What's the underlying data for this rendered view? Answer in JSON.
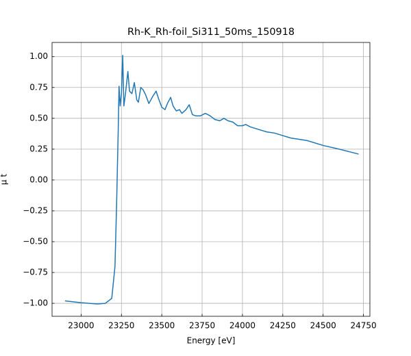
{
  "chart_data": {
    "type": "line",
    "title": "Rh-K_Rh-foil_Si311_50ms_150918",
    "xlabel": "Energy [eV]",
    "ylabel": "μ t",
    "color": "#1f77b4",
    "grid": true,
    "xlim": [
      22820,
      24790
    ],
    "ylim": [
      -1.105,
      1.115
    ],
    "xticks": [
      23000,
      23250,
      23500,
      23750,
      24000,
      24250,
      24500,
      24750
    ],
    "yticks": [
      {
        "value": 1,
        "label": "1.00"
      },
      {
        "value": 0.75,
        "label": "0.75"
      },
      {
        "value": 0.5,
        "label": "0.50"
      },
      {
        "value": 0.25,
        "label": "0.25"
      },
      {
        "value": 0,
        "label": "0.00"
      },
      {
        "value": -0.25,
        "label": "−0.25"
      },
      {
        "value": -0.5,
        "label": "−0.50"
      },
      {
        "value": -0.75,
        "label": "−0.75"
      },
      {
        "value": -1,
        "label": "−1.00"
      }
    ],
    "x": [
      22900,
      23000,
      23100,
      23150,
      23190,
      23210,
      23220,
      23230,
      23235,
      23242,
      23250,
      23258,
      23265,
      23275,
      23290,
      23300,
      23315,
      23330,
      23345,
      23355,
      23370,
      23385,
      23400,
      23420,
      23445,
      23465,
      23480,
      23500,
      23520,
      23535,
      23555,
      23570,
      23590,
      23610,
      23625,
      23650,
      23670,
      23690,
      23710,
      23740,
      23770,
      23800,
      23830,
      23860,
      23885,
      23910,
      23940,
      23970,
      24000,
      24020,
      24050,
      24100,
      24150,
      24200,
      24250,
      24300,
      24400,
      24500,
      24600,
      24720
    ],
    "values": [
      -0.98,
      -0.995,
      -1.005,
      -1.0,
      -0.96,
      -0.7,
      -0.2,
      0.4,
      0.76,
      0.6,
      0.7,
      1.01,
      0.6,
      0.7,
      0.88,
      0.72,
      0.7,
      0.79,
      0.65,
      0.63,
      0.75,
      0.73,
      0.69,
      0.62,
      0.68,
      0.72,
      0.66,
      0.59,
      0.57,
      0.62,
      0.67,
      0.6,
      0.56,
      0.57,
      0.54,
      0.57,
      0.61,
      0.53,
      0.52,
      0.52,
      0.54,
      0.52,
      0.49,
      0.48,
      0.5,
      0.48,
      0.47,
      0.44,
      0.44,
      0.45,
      0.43,
      0.41,
      0.39,
      0.38,
      0.36,
      0.34,
      0.32,
      0.28,
      0.25,
      0.21
    ]
  }
}
